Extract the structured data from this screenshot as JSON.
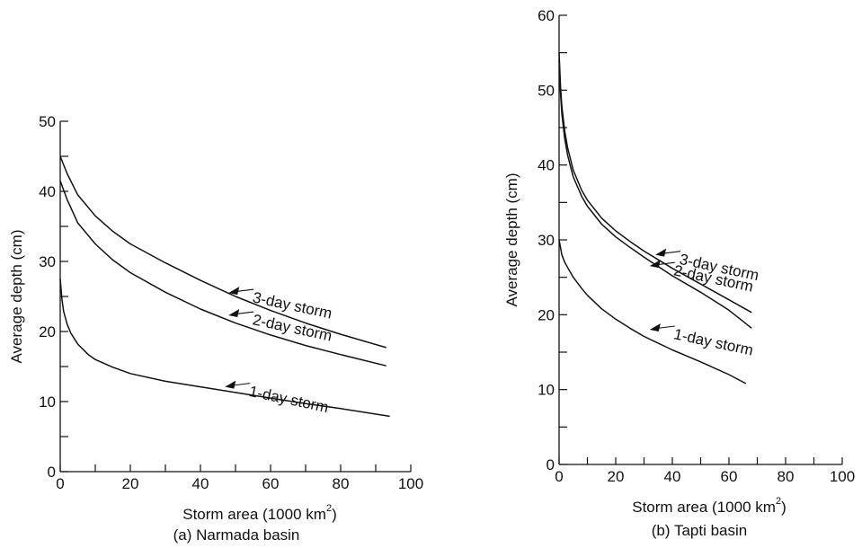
{
  "colors": {
    "line": "#111111",
    "background": "#ffffff"
  },
  "chart_data": [
    {
      "type": "line",
      "caption": "(a) Narmada basin",
      "xlabel": "Storm area (1000 km",
      "xlabel_sup": "2",
      "xlabel_close": ")",
      "ylabel": "Average depth (cm)",
      "xlim": [
        0,
        100
      ],
      "ylim": [
        0,
        50
      ],
      "x_ticks_labeled": [
        "0",
        "20",
        "40",
        "60",
        "80",
        "100"
      ],
      "y_ticks_labeled": [
        "0",
        "10",
        "20",
        "30",
        "40",
        "50"
      ],
      "grid": false,
      "series": [
        {
          "name": "3-day storm",
          "x": [
            0,
            2,
            5,
            10,
            15,
            20,
            30,
            40,
            50,
            60,
            70,
            80,
            93
          ],
          "y": [
            45,
            42.5,
            39.5,
            36.5,
            34.3,
            32.5,
            29.8,
            27.3,
            25.0,
            23.0,
            21.2,
            19.6,
            17.7
          ],
          "label_at": [
            48,
            25.5
          ]
        },
        {
          "name": "2-day storm",
          "x": [
            0,
            2,
            5,
            10,
            15,
            20,
            30,
            40,
            50,
            60,
            70,
            80,
            93
          ],
          "y": [
            41.5,
            38.8,
            35.5,
            32.5,
            30.2,
            28.4,
            25.6,
            23.2,
            21.2,
            19.5,
            18.0,
            16.7,
            15.1
          ],
          "label_at": [
            48,
            22.3
          ]
        },
        {
          "name": "1-day storm",
          "x": [
            0,
            0.5,
            1,
            2,
            3,
            5,
            8,
            10,
            15,
            20,
            30,
            40,
            50,
            60,
            70,
            80,
            94
          ],
          "y": [
            27.5,
            24.5,
            22.8,
            21.0,
            19.8,
            18.2,
            16.7,
            16.0,
            14.9,
            14.0,
            12.9,
            12.1,
            11.3,
            10.5,
            9.7,
            9.0,
            7.9
          ],
          "label_at": [
            47,
            12.1
          ]
        }
      ]
    },
    {
      "type": "line",
      "caption": "(b) Tapti basin",
      "xlabel": "Storm area (1000 km",
      "xlabel_sup": "2",
      "xlabel_close": ")",
      "ylabel": "Average depth (cm)",
      "xlim": [
        0,
        100
      ],
      "ylim": [
        0,
        60
      ],
      "x_ticks_labeled": [
        "0",
        "20",
        "40",
        "60",
        "80",
        "100"
      ],
      "y_ticks_labeled": [
        "0",
        "10",
        "20",
        "30",
        "40",
        "50",
        "60"
      ],
      "grid": false,
      "series": [
        {
          "name": "3-day storm",
          "x": [
            0,
            0.5,
            1,
            2,
            3,
            5,
            8,
            10,
            15,
            20,
            25,
            30,
            40,
            50,
            60,
            68
          ],
          "y": [
            55,
            50.5,
            47.8,
            44.5,
            42.3,
            39.3,
            36.6,
            35.3,
            32.9,
            31.2,
            29.8,
            28.5,
            26.2,
            24.1,
            22.0,
            20.3
          ],
          "label_at": [
            34,
            28.0
          ]
        },
        {
          "name": "2-day storm",
          "x": [
            0,
            0.5,
            1,
            2,
            3,
            5,
            8,
            10,
            15,
            20,
            25,
            30,
            40,
            50,
            60,
            68
          ],
          "y": [
            54,
            49.5,
            46.8,
            43.5,
            41.3,
            38.4,
            35.8,
            34.5,
            32.1,
            30.4,
            29.0,
            27.7,
            25.2,
            23.0,
            20.6,
            18.2
          ],
          "label_at": [
            32,
            26.5
          ]
        },
        {
          "name": "1-day storm",
          "x": [
            0,
            1,
            2,
            3,
            5,
            8,
            10,
            15,
            20,
            25,
            30,
            40,
            50,
            60,
            66
          ],
          "y": [
            30,
            28.0,
            27.0,
            26.3,
            25.0,
            23.5,
            22.6,
            20.8,
            19.4,
            18.2,
            17.1,
            15.3,
            13.7,
            12.0,
            10.8
          ],
          "label_at": [
            32,
            18.0
          ]
        }
      ]
    }
  ]
}
